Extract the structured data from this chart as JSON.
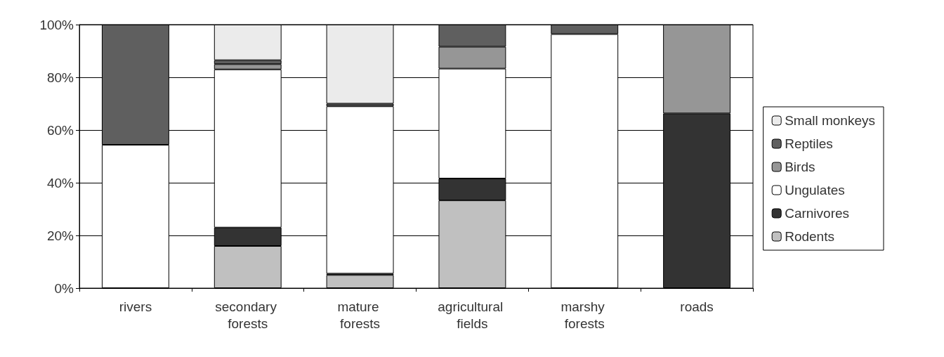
{
  "chart_data": {
    "type": "bar",
    "stacked": true,
    "categories": [
      "rivers",
      "secondary forests",
      "mature forests",
      "agricultural fields",
      "marshy forests",
      "roads"
    ],
    "series": [
      {
        "name": "Rodents",
        "color": "#c0c0c0",
        "values": [
          0,
          16,
          5,
          33.3,
          0,
          0
        ]
      },
      {
        "name": "Carnivores",
        "color": "#333333",
        "values": [
          0,
          7,
          0.5,
          8.3,
          0,
          66.3
        ]
      },
      {
        "name": "Ungulates",
        "color": "#ffffff",
        "values": [
          54.4,
          60,
          63.5,
          41.7,
          96.4,
          0
        ]
      },
      {
        "name": "Birds",
        "color": "#969696",
        "values": [
          0,
          2,
          0,
          8.3,
          0,
          33.7
        ]
      },
      {
        "name": "Reptiles",
        "color": "#5f5f5f",
        "values": [
          45.6,
          1.5,
          1,
          8.4,
          3.6,
          0
        ]
      },
      {
        "name": "Small monkeys",
        "color": "#ebebeb",
        "values": [
          0,
          13.5,
          30,
          0,
          0,
          0
        ]
      }
    ],
    "ylim": [
      0,
      100
    ],
    "yticks": [
      {
        "value": 0,
        "label": "0%"
      },
      {
        "value": 20,
        "label": "20%"
      },
      {
        "value": 40,
        "label": "40%"
      },
      {
        "value": 60,
        "label": "60%"
      },
      {
        "value": 80,
        "label": "80%"
      },
      {
        "value": 100,
        "label": "100%"
      }
    ],
    "grid": "y",
    "legend": "right"
  }
}
